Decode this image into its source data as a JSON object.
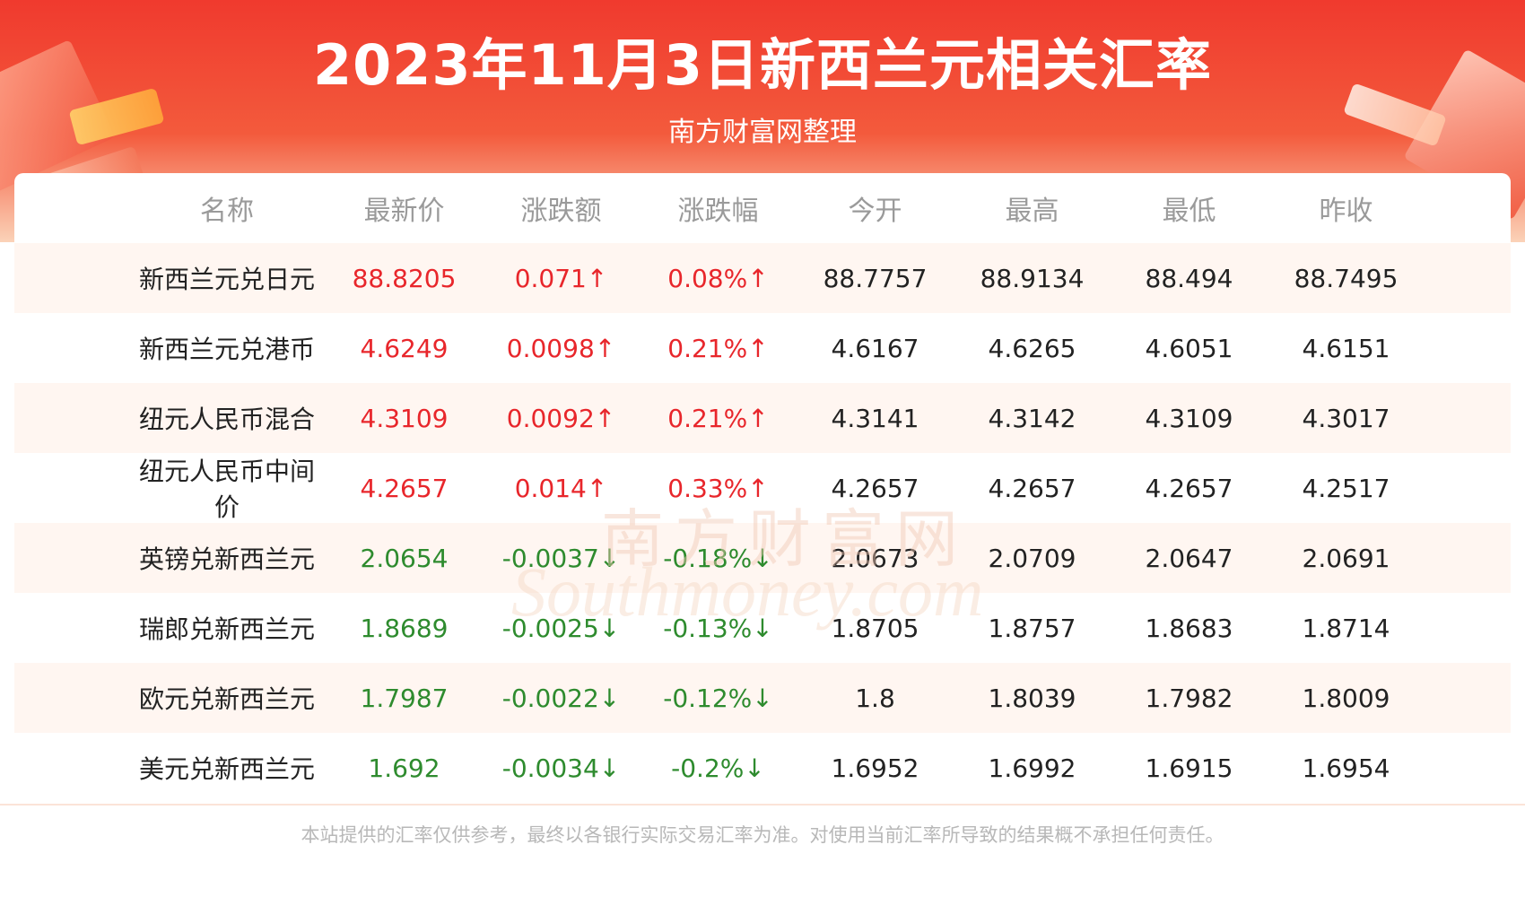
{
  "header": {
    "title": "2023年11月3日新西兰元相关汇率",
    "subtitle": "南方财富网整理"
  },
  "colors": {
    "banner": "#f03a2e",
    "up": "#e8262b",
    "down": "#2e8b2e",
    "neutral": "#222222",
    "stripe": "#fff6f1"
  },
  "table": {
    "columns": [
      "名称",
      "最新价",
      "涨跌额",
      "涨跌幅",
      "今开",
      "最高",
      "最低",
      "昨收"
    ],
    "rows": [
      {
        "name": "新西兰元兑日元",
        "latest": "88.8205",
        "change": "0.071↑",
        "pct": "0.08%↑",
        "open": "88.7757",
        "high": "88.9134",
        "low": "88.494",
        "prev": "88.7495",
        "trend": "up"
      },
      {
        "name": "新西兰元兑港币",
        "latest": "4.6249",
        "change": "0.0098↑",
        "pct": "0.21%↑",
        "open": "4.6167",
        "high": "4.6265",
        "low": "4.6051",
        "prev": "4.6151",
        "trend": "up"
      },
      {
        "name": "纽元人民币混合",
        "latest": "4.3109",
        "change": "0.0092↑",
        "pct": "0.21%↑",
        "open": "4.3141",
        "high": "4.3142",
        "low": "4.3109",
        "prev": "4.3017",
        "trend": "up"
      },
      {
        "name": "纽元人民币中间价",
        "latest": "4.2657",
        "change": "0.014↑",
        "pct": "0.33%↑",
        "open": "4.2657",
        "high": "4.2657",
        "low": "4.2657",
        "prev": "4.2517",
        "trend": "up"
      },
      {
        "name": "英镑兑新西兰元",
        "latest": "2.0654",
        "change": "-0.0037↓",
        "pct": "-0.18%↓",
        "open": "2.0673",
        "high": "2.0709",
        "low": "2.0647",
        "prev": "2.0691",
        "trend": "down"
      },
      {
        "name": "瑞郎兑新西兰元",
        "latest": "1.8689",
        "change": "-0.0025↓",
        "pct": "-0.13%↓",
        "open": "1.8705",
        "high": "1.8757",
        "low": "1.8683",
        "prev": "1.8714",
        "trend": "down"
      },
      {
        "name": "欧元兑新西兰元",
        "latest": "1.7987",
        "change": "-0.0022↓",
        "pct": "-0.12%↓",
        "open": "1.8",
        "high": "1.8039",
        "low": "1.7982",
        "prev": "1.8009",
        "trend": "down"
      },
      {
        "name": "美元兑新西兰元",
        "latest": "1.692",
        "change": "-0.0034↓",
        "pct": "-0.2%↓",
        "open": "1.6952",
        "high": "1.6992",
        "low": "1.6915",
        "prev": "1.6954",
        "trend": "down"
      }
    ]
  },
  "watermark": {
    "cn": "南方财富网",
    "en": "Southmoney.com"
  },
  "footer": {
    "disclaimer": "本站提供的汇率仅供参考，最终以各银行实际交易汇率为准。对使用当前汇率所导致的结果概不承担任何责任。"
  }
}
